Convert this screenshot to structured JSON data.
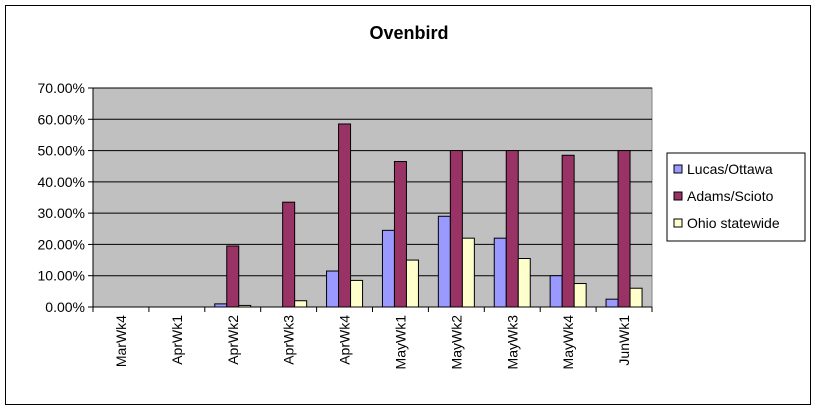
{
  "chart_data": {
    "type": "bar",
    "title": "Ovenbird",
    "xlabel": "",
    "ylabel": "",
    "ylim": [
      0,
      0.7
    ],
    "ytick_values": [
      0,
      0.1,
      0.2,
      0.3,
      0.4,
      0.5,
      0.6,
      0.7
    ],
    "ytick_labels": [
      "0.00%",
      "10.00%",
      "20.00%",
      "30.00%",
      "40.00%",
      "50.00%",
      "60.00%",
      "70.00%"
    ],
    "grid": true,
    "legend_position": "right",
    "categories": [
      "MarWk4",
      "AprWk1",
      "AprWk2",
      "AprWk3",
      "AprWk4",
      "MayWk1",
      "MayWk2",
      "MayWk3",
      "MayWk4",
      "JunWk1"
    ],
    "series": [
      {
        "name": "Lucas/Ottawa",
        "color": "#9999FF",
        "values": [
          0,
          0,
          0.01,
          0,
          0.115,
          0.245,
          0.29,
          0.22,
          0.1,
          0.025
        ]
      },
      {
        "name": "Adams/Scioto",
        "color": "#993366",
        "values": [
          0,
          0,
          0.195,
          0.335,
          0.585,
          0.465,
          0.5,
          0.5,
          0.485,
          0.5
        ]
      },
      {
        "name": "Ohio statewide",
        "color": "#FFFFCC",
        "values": [
          0,
          0,
          0.005,
          0.02,
          0.085,
          0.15,
          0.22,
          0.155,
          0.075,
          0.06
        ]
      }
    ],
    "plot_background": "#C0C0C0"
  }
}
